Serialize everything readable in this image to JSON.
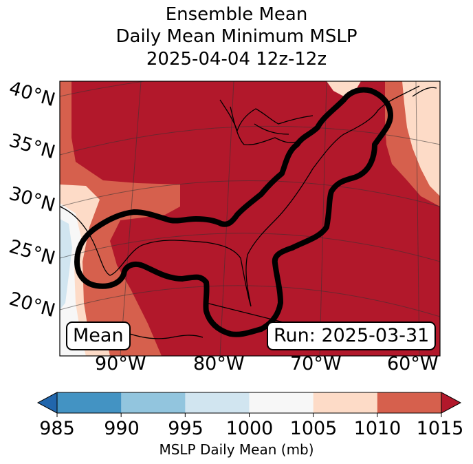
{
  "title_lines": [
    "Ensemble Mean",
    "Daily Mean Minimum MSLP",
    "2025-04-04 12z-12z"
  ],
  "map": {
    "latitude_labels": [
      "40°N",
      "35°N",
      "30°N",
      "25°N",
      "20°N"
    ],
    "longitude_labels": [
      "90°W",
      "80°W",
      "70°W",
      "60°W"
    ],
    "left_box_label": "Mean",
    "right_box_label": "Run: 2025-03-31",
    "contour_description_color": "#000000",
    "field_colors": {
      "dark_red": "#b2182b",
      "red": "#d6604d",
      "light_salmon": "#fddbc7",
      "white": "#f7f7f7",
      "light_blue": "#d1e5f0"
    }
  },
  "colorbar": {
    "label": "MSLP Daily Mean (mb)",
    "ticks": [
      "985",
      "990",
      "995",
      "1000",
      "1005",
      "1010",
      "1015"
    ],
    "bins": [
      {
        "from": 985,
        "to": 990,
        "color": "#4393c3"
      },
      {
        "from": 990,
        "to": 995,
        "color": "#92c5de"
      },
      {
        "from": 995,
        "to": 1000,
        "color": "#d1e5f0"
      },
      {
        "from": 1000,
        "to": 1005,
        "color": "#f7f7f7"
      },
      {
        "from": 1005,
        "to": 1010,
        "color": "#fddbc7"
      },
      {
        "from": 1010,
        "to": 1015,
        "color": "#d6604d"
      }
    ],
    "under_color": "#2166ac",
    "over_color": "#b2182b"
  }
}
